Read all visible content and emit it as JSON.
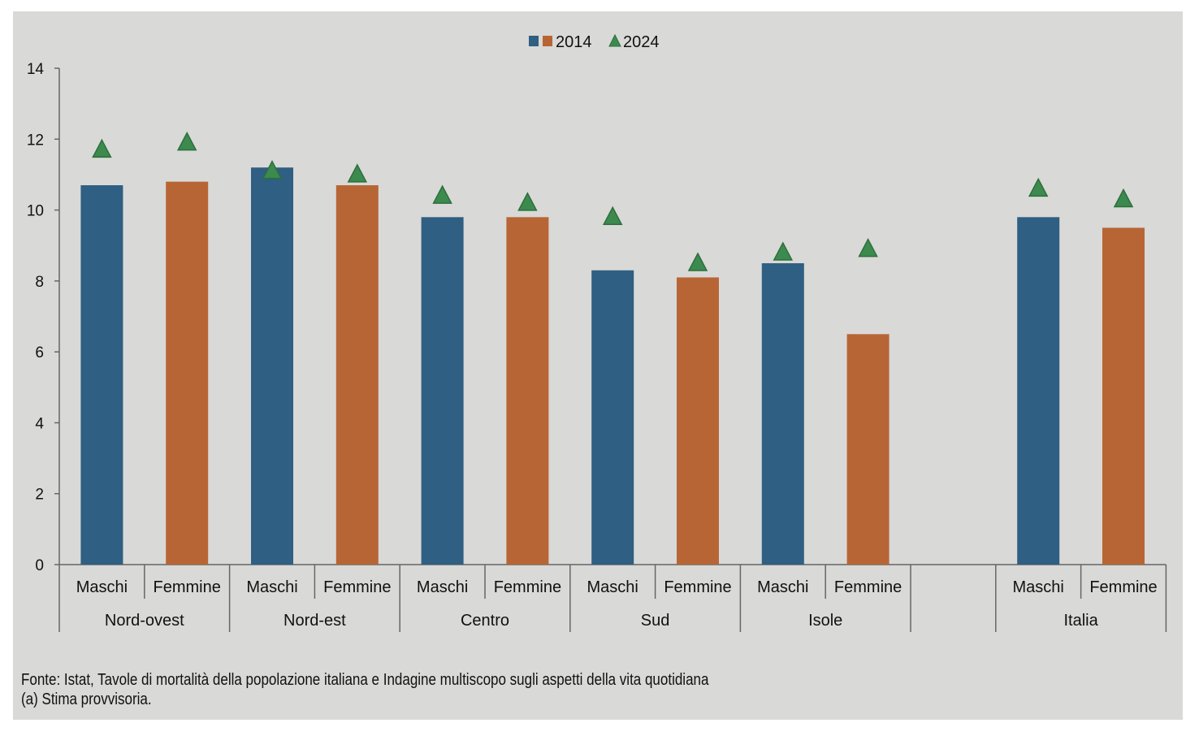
{
  "chart_data": {
    "type": "bar",
    "ylim": [
      0,
      14
    ],
    "yticks": [
      0,
      2,
      4,
      6,
      8,
      10,
      12,
      14
    ],
    "grid": false,
    "legend_position": "top-center",
    "groups": [
      {
        "label": "Nord-ovest",
        "categories": [
          "Maschi",
          "Femmine"
        ]
      },
      {
        "label": "Nord-est",
        "categories": [
          "Maschi",
          "Femmine"
        ]
      },
      {
        "label": "Centro",
        "categories": [
          "Maschi",
          "Femmine"
        ]
      },
      {
        "label": "Sud",
        "categories": [
          "Maschi",
          "Femmine"
        ]
      },
      {
        "label": "Isole",
        "categories": [
          "Maschi",
          "Femmine"
        ]
      },
      {
        "label": "",
        "categories": []
      },
      {
        "label": "Italia",
        "categories": [
          "Maschi",
          "Femmine"
        ]
      }
    ],
    "series": [
      {
        "name": "2014",
        "type": "bar",
        "colors": {
          "Maschi": "#2f5f82",
          "Femmine": "#b86535"
        },
        "values": [
          10.7,
          10.8,
          11.2,
          10.7,
          9.8,
          9.8,
          8.3,
          8.1,
          8.5,
          6.5,
          9.8,
          9.5
        ]
      },
      {
        "name": "2024",
        "type": "marker-triangle",
        "color": "#3d8a4f",
        "values": [
          11.7,
          11.9,
          11.1,
          11.0,
          10.4,
          10.2,
          9.8,
          8.5,
          8.8,
          8.9,
          10.6,
          10.3
        ]
      }
    ]
  },
  "notes": {
    "source": "Fonte: Istat, Tavole di mortalità della popolazione italiana e Indagine multiscopo sugli aspetti della vita quotidiana",
    "footnote": "(a) Stima provvisoria."
  }
}
